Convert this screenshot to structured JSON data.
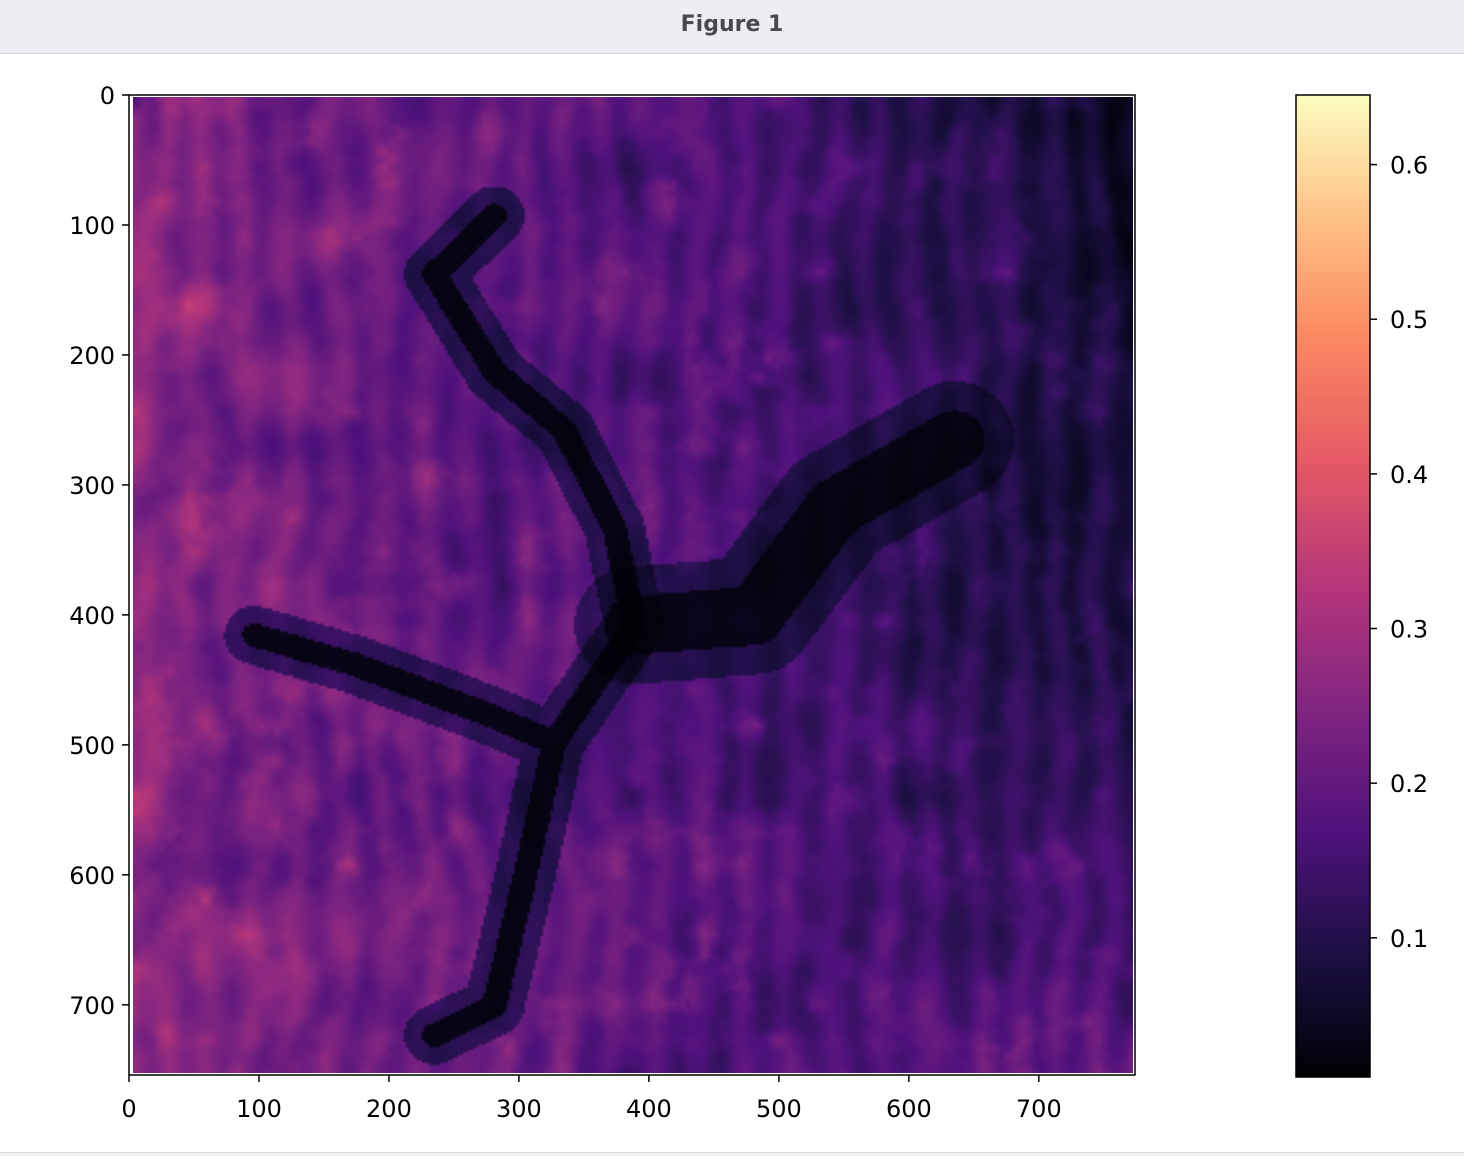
{
  "window": {
    "title": "Figure 1"
  },
  "chart_data": [
    {
      "type": "heatmap",
      "title": "",
      "xlabel": "",
      "ylabel": "",
      "xlim": [
        0,
        774
      ],
      "ylim": [
        754,
        0
      ],
      "x_ticks": [
        0,
        100,
        200,
        300,
        400,
        500,
        600,
        700
      ],
      "y_ticks": [
        0,
        100,
        200,
        300,
        400,
        500,
        600,
        700
      ],
      "colormap": "magma",
      "colormap_stops": [
        "#000004",
        "#1c1044",
        "#4f127b",
        "#812581",
        "#b5367a",
        "#e55964",
        "#fb8761",
        "#fec287",
        "#fcfdbf"
      ],
      "grid": false,
      "description_note_free": true
    },
    {
      "type": "colorbar",
      "range": [
        0.01,
        0.645
      ],
      "ticks": [
        "0.1",
        "0.2",
        "0.3",
        "0.4",
        "0.5",
        "0.6"
      ],
      "tick_values": [
        0.1,
        0.2,
        0.3,
        0.4,
        0.5,
        0.6
      ]
    }
  ]
}
